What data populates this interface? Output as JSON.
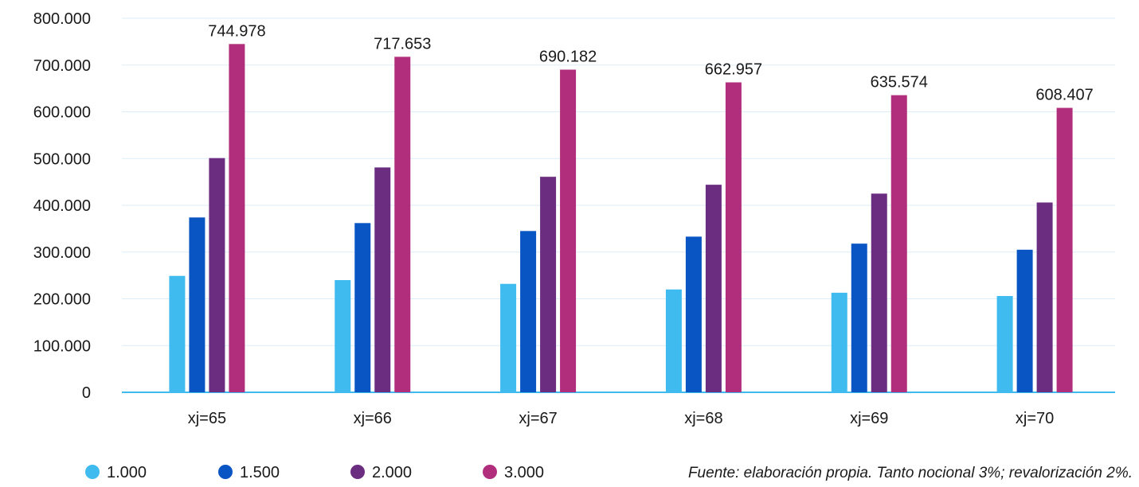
{
  "chart_data": {
    "type": "bar",
    "categories": [
      "xj=65",
      "xj=66",
      "xj=67",
      "xj=68",
      "xj=69",
      "xj=70"
    ],
    "series": [
      {
        "name": "1.000",
        "color": "#3fbbef",
        "values": [
          249000,
          240000,
          232000,
          220000,
          213000,
          206000
        ]
      },
      {
        "name": "1.500",
        "color": "#0a55c4",
        "values": [
          374000,
          362000,
          345000,
          333000,
          318000,
          305000
        ]
      },
      {
        "name": "2.000",
        "color": "#6b2d80",
        "values": [
          501000,
          481000,
          461000,
          444000,
          425000,
          406000
        ]
      },
      {
        "name": "3.000",
        "color": "#b02e7c",
        "values": [
          744978,
          717653,
          690182,
          662957,
          635574,
          608407
        ]
      }
    ],
    "data_labels": [
      "744.978",
      "717.653",
      "690.182",
      "662.957",
      "635.574",
      "608.407"
    ],
    "yticks": [
      "0",
      "100.000",
      "200.000",
      "300.000",
      "400.000",
      "500.000",
      "600.000",
      "700.000",
      "800.000"
    ],
    "ylim": [
      0,
      800000
    ],
    "grid": true,
    "legend_position": "bottom-left",
    "source_note": "Fuente: elaboración propia. Tanto nocional 3%; revalorización 2%.",
    "colors": {
      "grid": "#ddeef8",
      "axis": "#3fbbef"
    }
  }
}
